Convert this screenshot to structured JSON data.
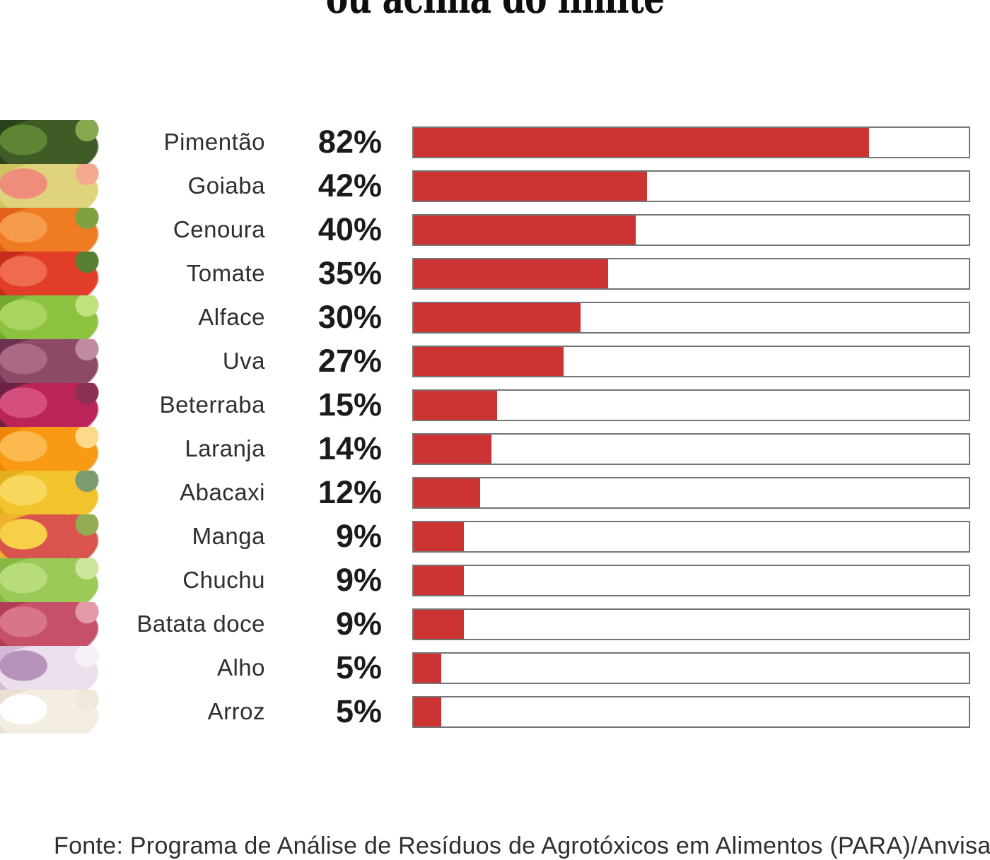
{
  "title": {
    "text": "ou acima do limite"
  },
  "source": {
    "text": "Fonte: Programa de Análise de Resíduos de Agrotóxicos em Alimentos (PARA)/Anvisa"
  },
  "colors": {
    "bar_fill": "#cc3333",
    "bar_track": "#ffffff",
    "bar_border": "#757575",
    "label_text": "#2f2f2f",
    "value_text": "#1b1b1b",
    "title_text": "#0e0e0e",
    "background": "#ffffff"
  },
  "chart_data": {
    "type": "bar",
    "orientation": "horizontal",
    "title": "ou acima do limite",
    "unit": "%",
    "xlim": [
      0,
      100
    ],
    "grid": false,
    "legend": false,
    "categories": [
      "Pimentão",
      "Goiaba",
      "Cenoura",
      "Tomate",
      "Alface",
      "Uva",
      "Beterraba",
      "Laranja",
      "Abacaxi",
      "Manga",
      "Chuchu",
      "Batata doce",
      "Alho",
      "Arroz"
    ],
    "values": [
      82,
      42,
      40,
      35,
      30,
      27,
      15,
      14,
      12,
      9,
      9,
      9,
      5,
      5
    ],
    "value_labels": [
      "82%",
      "42%",
      "40%",
      "35%",
      "30%",
      "27%",
      "15%",
      "14%",
      "12%",
      "9%",
      "9%",
      "9%",
      "5%",
      "5%"
    ],
    "source": "Fonte: Programa de Análise de Resíduos de Agrotóxicos em Alimentos (PARA)/Anvisa"
  },
  "items": [
    {
      "label": "Pimentão",
      "value": 82,
      "value_label": "82%",
      "photo": "pimentao-photo",
      "photo_colors": [
        "#3f5c26",
        "#2a421b",
        "#5d8533",
        "#86a84e"
      ]
    },
    {
      "label": "Goiaba",
      "value": 42,
      "value_label": "42%",
      "photo": "goiaba-photo",
      "photo_colors": [
        "#dfd47b",
        "#cfc35f",
        "#ef8d7b",
        "#f4a98f"
      ]
    },
    {
      "label": "Cenoura",
      "value": 40,
      "value_label": "40%",
      "photo": "cenoura-photo",
      "photo_colors": [
        "#ef7b22",
        "#e2601b",
        "#f59b4b",
        "#7da23f"
      ]
    },
    {
      "label": "Tomate",
      "value": 35,
      "value_label": "35%",
      "photo": "tomate-photo",
      "photo_colors": [
        "#e23d28",
        "#c62c1c",
        "#f06a4f",
        "#567f31"
      ]
    },
    {
      "label": "Alface",
      "value": 30,
      "value_label": "30%",
      "photo": "alface-photo",
      "photo_colors": [
        "#8cc240",
        "#73a92e",
        "#a8d45f",
        "#bfe27e"
      ]
    },
    {
      "label": "Uva",
      "value": 27,
      "value_label": "27%",
      "photo": "uva-photo",
      "photo_colors": [
        "#8d4a67",
        "#6a3150",
        "#aa6a85",
        "#c08ba0"
      ]
    },
    {
      "label": "Beterraba",
      "value": 15,
      "value_label": "15%",
      "photo": "beterraba-photo",
      "photo_colors": [
        "#bb2458",
        "#6e2144",
        "#d44f7d",
        "#8c2f54"
      ]
    },
    {
      "label": "Laranja",
      "value": 14,
      "value_label": "14%",
      "photo": "laranja-photo",
      "photo_colors": [
        "#f89a15",
        "#ef8608",
        "#fcb94e",
        "#fdd98c"
      ]
    },
    {
      "label": "Abacaxi",
      "value": 12,
      "value_label": "12%",
      "photo": "abacaxi-photo",
      "photo_colors": [
        "#f1c32d",
        "#e5b01e",
        "#f8d75c",
        "#7c9c70"
      ]
    },
    {
      "label": "Manga",
      "value": 9,
      "value_label": "9%",
      "photo": "manga-photo",
      "photo_colors": [
        "#d8544d",
        "#f0b12e",
        "#f7cf48",
        "#93ac51"
      ]
    },
    {
      "label": "Chuchu",
      "value": 9,
      "value_label": "9%",
      "photo": "chuchu-photo",
      "photo_colors": [
        "#9cca58",
        "#86b944",
        "#b7dc79",
        "#cde79a"
      ]
    },
    {
      "label": "Batata doce",
      "value": 9,
      "value_label": "9%",
      "photo": "batata-doce-photo",
      "photo_colors": [
        "#c75069",
        "#b33d55",
        "#d9758b",
        "#e29aab"
      ]
    },
    {
      "label": "Alho",
      "value": 5,
      "value_label": "5%",
      "photo": "alho-photo",
      "photo_colors": [
        "#ecdfec",
        "#d3b9d5",
        "#b792bb",
        "#f7f0f6"
      ]
    },
    {
      "label": "Arroz",
      "value": 5,
      "value_label": "5%",
      "photo": "arroz-photo",
      "photo_colors": [
        "#f3ede2",
        "#e7dfd0",
        "#ffffff",
        "#efe8db"
      ]
    }
  ]
}
